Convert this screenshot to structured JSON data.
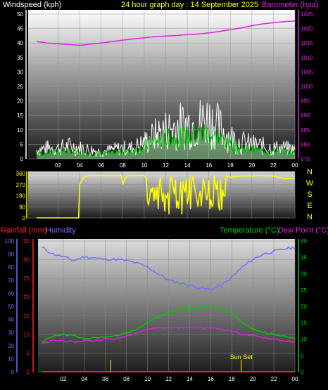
{
  "header": {
    "wind_label": "Windspeed (kph)",
    "title": "24 hour graph day : 14 September 2025",
    "baro_label": "Barometer (hpa)"
  },
  "mid_header": {
    "rain_label": "Rainfall (mm)",
    "humidity_label": "Humidity",
    "temp_label": "Temperature (°C)",
    "dew_label": "Dew Point (°C)"
  },
  "compass": [
    "N",
    "W",
    "S",
    "E",
    "N"
  ],
  "sunset_label": "Sun Set",
  "colors": {
    "wind_max": "#ffffff",
    "wind_avg": "#00cc00",
    "barometer": "#e020e0",
    "direction": "#ffff00",
    "humidity": "#7070ff",
    "temperature": "#00cc00",
    "dewpoint": "#e020e0",
    "rain": "#ff2020",
    "sunset": "#ccaa00"
  },
  "chart_data": [
    {
      "type": "line",
      "name": "wind-barometer",
      "xticks": [
        "02",
        "04",
        "06",
        "08",
        "10",
        "12",
        "14",
        "16",
        "18",
        "20",
        "22",
        "00"
      ],
      "ylim_left": [
        0,
        50
      ],
      "yticks_left": [
        "0",
        "5",
        "10",
        "15",
        "20",
        "25",
        "30",
        "35",
        "40",
        "45",
        "50"
      ],
      "ylim_right": [
        975,
        1025
      ],
      "yticks_right": [
        "975",
        "980",
        "985",
        "990",
        "995",
        "1000",
        "1005",
        "1010",
        "1015",
        "1020",
        "1025"
      ],
      "hours": [
        0,
        1,
        2,
        3,
        4,
        5,
        6,
        7,
        8,
        9,
        10,
        11,
        12,
        13,
        14,
        15,
        16,
        17,
        18,
        19,
        20,
        21,
        22,
        23,
        24
      ],
      "series": [
        {
          "role": "wind_max",
          "values": [
            5,
            6,
            6,
            7,
            6,
            5,
            4,
            5,
            6,
            6,
            9,
            13,
            16,
            18,
            19,
            20,
            22,
            17,
            12,
            9,
            8,
            7,
            6,
            6,
            5
          ]
        },
        {
          "role": "wind_avg",
          "values": [
            2,
            2,
            3,
            3,
            2,
            2,
            2,
            2,
            3,
            3,
            5,
            7,
            8,
            9,
            9,
            10,
            10,
            8,
            6,
            4,
            4,
            3,
            3,
            3,
            2
          ]
        },
        {
          "role": "barometer",
          "values": [
            1015.5,
            1015,
            1014.7,
            1014.5,
            1014.2,
            1014.6,
            1015,
            1015.5,
            1016,
            1016.4,
            1016.8,
            1017.2,
            1017.4,
            1017.6,
            1017.9,
            1018.1,
            1018.5,
            1019,
            1019.6,
            1020.2,
            1021,
            1021.6,
            1022,
            1022.4,
            1022.6
          ]
        }
      ]
    },
    {
      "type": "line",
      "name": "wind-direction",
      "xticks": [
        "02",
        "04",
        "06",
        "08",
        "10",
        "12",
        "14",
        "16",
        "18",
        "20",
        "22",
        "00"
      ],
      "ylim": [
        0,
        360
      ],
      "yticks": [
        "0",
        "90",
        "180",
        "270",
        "360"
      ],
      "hours": [
        0,
        3.9,
        4.0,
        4.3,
        4.6,
        5,
        6,
        7,
        7.9,
        8.0,
        8.2,
        8.5,
        9,
        10,
        10.5,
        11,
        11.5,
        12,
        12.5,
        13,
        13.5,
        14,
        14.5,
        15,
        15.5,
        16,
        16.5,
        17,
        17.5,
        18,
        19,
        20,
        21,
        22,
        23,
        24
      ],
      "values": [
        0,
        0,
        270,
        320,
        340,
        345,
        345,
        345,
        345,
        270,
        320,
        345,
        345,
        345,
        280,
        100,
        330,
        120,
        340,
        90,
        345,
        110,
        340,
        90,
        330,
        20,
        345,
        60,
        345,
        330,
        340,
        340,
        345,
        340,
        320,
        320
      ]
    },
    {
      "type": "line",
      "name": "temperature-humidity",
      "xticks": [
        "02",
        "04",
        "06",
        "08",
        "10",
        "12",
        "14",
        "16",
        "18",
        "20",
        "22",
        "00"
      ],
      "ylim_humidity": [
        0,
        100
      ],
      "yticks_humidity": [
        "0",
        "10",
        "20",
        "30",
        "40",
        "50",
        "60",
        "70",
        "80",
        "90",
        "100"
      ],
      "ylim_rain": [
        0,
        35
      ],
      "yticks_rain": [
        "0",
        "5",
        "10",
        "15",
        "20",
        "25",
        "30",
        "35"
      ],
      "ylim_temp": [
        0,
        40
      ],
      "yticks_temp": [
        "0",
        "5",
        "10",
        "15",
        "20",
        "25",
        "30",
        "35",
        "40"
      ],
      "hours": [
        0,
        1,
        2,
        3,
        4,
        5,
        6,
        7,
        8,
        9,
        10,
        11,
        12,
        13,
        14,
        15,
        16,
        17,
        18,
        19,
        20,
        21,
        22,
        23,
        24
      ],
      "series": [
        {
          "role": "humidity",
          "values": [
            95,
            90,
            88,
            85,
            88,
            87,
            86,
            86,
            85,
            83,
            80,
            75,
            70,
            68,
            66,
            64,
            63,
            66,
            72,
            80,
            86,
            90,
            92,
            94,
            95
          ]
        },
        {
          "role": "temperature",
          "values": [
            9,
            11,
            11.5,
            11,
            10,
            10.5,
            10.5,
            11,
            12,
            13,
            15,
            17,
            18,
            19,
            19.5,
            19.5,
            20,
            19.5,
            18,
            15,
            13,
            12,
            11.5,
            11,
            10
          ]
        },
        {
          "role": "dewpoint",
          "values": [
            8.5,
            9.5,
            9.5,
            9,
            9.5,
            9.5,
            10,
            10,
            11,
            12,
            13,
            13.5,
            13.5,
            13.5,
            13.5,
            13.5,
            13.5,
            13,
            12.5,
            11.5,
            11,
            10.5,
            10,
            9.5,
            9
          ]
        },
        {
          "role": "rain",
          "values": [
            0,
            0,
            0,
            0,
            0,
            0,
            0,
            0,
            0,
            0,
            0,
            0,
            0,
            0,
            0,
            0,
            0,
            0,
            0,
            0,
            0,
            0,
            0,
            0,
            0
          ]
        }
      ],
      "sunset_hour": 18.9,
      "sunrise_hour": 6.5
    }
  ]
}
